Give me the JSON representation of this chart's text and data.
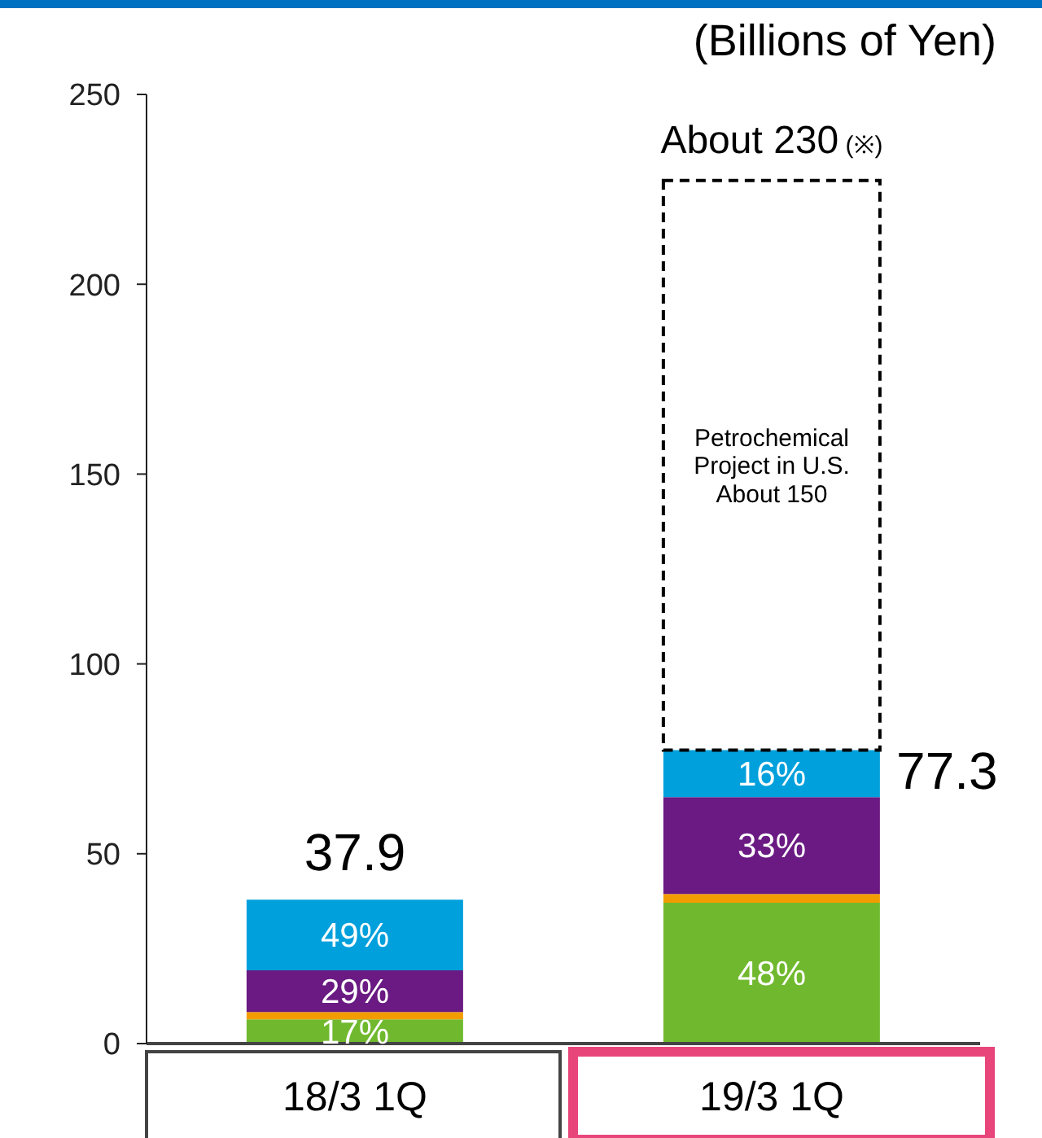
{
  "chart_data": {
    "type": "bar",
    "stacked": true,
    "ylabel": "(Billions of Yen)",
    "categories": [
      "18/3  1Q",
      "19/3  1Q"
    ],
    "series": [
      {
        "color": "#70b92e",
        "values": [
          6.4,
          37.1
        ]
      },
      {
        "color": "#f39c00",
        "values": [
          1.9,
          2.3
        ]
      },
      {
        "color": "#6a1a82",
        "values": [
          11.0,
          25.5
        ]
      },
      {
        "color": "#00a0dc",
        "values": [
          18.6,
          12.4
        ]
      },
      {
        "color": "#000000",
        "line_style": "dashed",
        "values": [
          null,
          150
        ]
      }
    ],
    "annotations": [
      "17%",
      "29%",
      "49%",
      "48%",
      "33%",
      "16%",
      {
        "text": "37.9",
        "x": "18/3  1Q",
        "y": 37.9
      },
      {
        "text": "77.3",
        "x": "19/3  1Q",
        "y": 77.3
      },
      "Petrochemical\nProject in U.S.\nAbout 150",
      {
        "text": "About 230 (※)",
        "x": "19/3  1Q",
        "y": 227.3
      }
    ],
    "ylim": [
      0,
      250
    ],
    "yticks": [
      0,
      50,
      100,
      150,
      200,
      250
    ],
    "grid": false,
    "legend": false
  }
}
